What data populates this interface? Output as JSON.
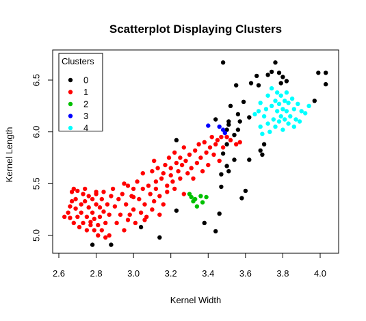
{
  "chart_data": {
    "type": "scatter",
    "title": "Scatterplot Displaying Clusters",
    "xlabel": "Kernel Width",
    "ylabel": "Kernel Length",
    "xlim": [
      2.6,
      4.05
    ],
    "ylim": [
      4.89,
      6.7
    ],
    "x_ticks": [
      "2.6",
      "2.8",
      "3.0",
      "3.2",
      "3.4",
      "3.6",
      "3.8",
      "4.0"
    ],
    "y_ticks": [
      "5.0",
      "5.5",
      "6.0",
      "6.5"
    ],
    "grid": false,
    "legend": {
      "title": "Clusters",
      "position": "top-left"
    },
    "series": [
      {
        "name": "0",
        "color": "#000000",
        "points": [
          [
            2.78,
            4.91
          ],
          [
            2.88,
            4.91
          ],
          [
            3.04,
            5.08
          ],
          [
            3.14,
            4.98
          ],
          [
            3.23,
            5.24
          ],
          [
            3.23,
            5.92
          ],
          [
            3.38,
            5.12
          ],
          [
            3.44,
            5.04
          ],
          [
            3.46,
            5.21
          ],
          [
            3.47,
            5.47
          ],
          [
            3.47,
            5.59
          ],
          [
            3.48,
            5.79
          ],
          [
            3.5,
            5.67
          ],
          [
            3.51,
            5.62
          ],
          [
            3.5,
            5.88
          ],
          [
            3.5,
            6.02
          ],
          [
            3.51,
            6.07
          ],
          [
            3.51,
            6.1
          ],
          [
            3.52,
            6.25
          ],
          [
            3.54,
            5.73
          ],
          [
            3.54,
            5.97
          ],
          [
            3.56,
            6.02
          ],
          [
            3.56,
            6.17
          ],
          [
            3.57,
            6.1
          ],
          [
            3.59,
            6.29
          ],
          [
            3.55,
            6.45
          ],
          [
            3.58,
            5.36
          ],
          [
            3.6,
            5.43
          ],
          [
            3.62,
            5.73
          ],
          [
            3.62,
            6.14
          ],
          [
            3.63,
            6.47
          ],
          [
            3.66,
            6.54
          ],
          [
            3.67,
            6.45
          ],
          [
            3.68,
            5.82
          ],
          [
            3.69,
            5.78
          ],
          [
            3.7,
            5.88
          ],
          [
            3.72,
            6.55
          ],
          [
            3.74,
            6.58
          ],
          [
            3.76,
            6.67
          ],
          [
            3.78,
            6.57
          ],
          [
            3.79,
            6.47
          ],
          [
            3.8,
            6.53
          ],
          [
            3.82,
            6.49
          ],
          [
            3.97,
            6.3
          ],
          [
            3.99,
            6.57
          ],
          [
            4.03,
            6.57
          ],
          [
            4.03,
            6.46
          ],
          [
            3.48,
            6.67
          ],
          [
            3.44,
            6.12
          ]
        ]
      },
      {
        "name": "1",
        "color": "#ff0000",
        "points": [
          [
            2.63,
            5.18
          ],
          [
            2.65,
            5.22
          ],
          [
            2.66,
            5.17
          ],
          [
            2.66,
            5.28
          ],
          [
            2.67,
            5.33
          ],
          [
            2.67,
            5.42
          ],
          [
            2.68,
            5.12
          ],
          [
            2.69,
            5.26
          ],
          [
            2.69,
            5.35
          ],
          [
            2.7,
            5.43
          ],
          [
            2.7,
            5.18
          ],
          [
            2.71,
            5.08
          ],
          [
            2.72,
            5.3
          ],
          [
            2.72,
            5.22
          ],
          [
            2.73,
            5.12
          ],
          [
            2.73,
            5.4
          ],
          [
            2.74,
            5.33
          ],
          [
            2.75,
            5.18
          ],
          [
            2.75,
            5.05
          ],
          [
            2.76,
            5.27
          ],
          [
            2.76,
            5.38
          ],
          [
            2.77,
            5.13
          ],
          [
            2.77,
            5.1
          ],
          [
            2.78,
            5.22
          ],
          [
            2.78,
            5.35
          ],
          [
            2.79,
            5.05
          ],
          [
            2.79,
            5.16
          ],
          [
            2.8,
            5.3
          ],
          [
            2.8,
            5.4
          ],
          [
            2.81,
            5.0
          ],
          [
            2.81,
            5.1
          ],
          [
            2.82,
            5.18
          ],
          [
            2.82,
            5.27
          ],
          [
            2.83,
            5.05
          ],
          [
            2.83,
            5.35
          ],
          [
            2.84,
            5.42
          ],
          [
            2.84,
            5.23
          ],
          [
            2.85,
            4.98
          ],
          [
            2.85,
            5.12
          ],
          [
            2.86,
            5.3
          ],
          [
            2.87,
            5.0
          ],
          [
            2.87,
            5.2
          ],
          [
            2.88,
            5.38
          ],
          [
            2.89,
            5.45
          ],
          [
            2.9,
            5.28
          ],
          [
            2.91,
            5.12
          ],
          [
            2.92,
            5.35
          ],
          [
            2.93,
            5.2
          ],
          [
            2.94,
            5.4
          ],
          [
            2.95,
            5.5
          ],
          [
            2.95,
            5.05
          ],
          [
            2.96,
            5.3
          ],
          [
            2.97,
            5.15
          ],
          [
            2.97,
            5.48
          ],
          [
            2.98,
            5.2
          ],
          [
            2.99,
            5.38
          ],
          [
            3.0,
            5.45
          ],
          [
            3.0,
            5.25
          ],
          [
            3.01,
            5.12
          ],
          [
            3.02,
            5.52
          ],
          [
            3.03,
            5.35
          ],
          [
            3.04,
            5.22
          ],
          [
            3.05,
            5.45
          ],
          [
            3.05,
            5.6
          ],
          [
            3.06,
            5.3
          ],
          [
            3.07,
            5.18
          ],
          [
            3.08,
            5.48
          ],
          [
            3.09,
            5.4
          ],
          [
            3.1,
            5.62
          ],
          [
            3.1,
            5.25
          ],
          [
            3.11,
            5.72
          ],
          [
            3.11,
            5.33
          ],
          [
            3.12,
            5.52
          ],
          [
            3.12,
            5.45
          ],
          [
            3.13,
            5.65
          ],
          [
            3.14,
            5.2
          ],
          [
            3.14,
            5.38
          ],
          [
            3.15,
            5.55
          ],
          [
            3.16,
            5.6
          ],
          [
            3.16,
            5.3
          ],
          [
            3.17,
            5.68
          ],
          [
            3.18,
            5.48
          ],
          [
            3.18,
            5.42
          ],
          [
            3.19,
            5.75
          ],
          [
            3.2,
            5.58
          ],
          [
            3.2,
            5.65
          ],
          [
            3.21,
            5.52
          ],
          [
            3.22,
            5.45
          ],
          [
            3.22,
            5.8
          ],
          [
            3.23,
            5.7
          ],
          [
            3.24,
            5.62
          ],
          [
            3.25,
            5.55
          ],
          [
            3.25,
            5.75
          ],
          [
            3.26,
            5.68
          ],
          [
            3.27,
            5.4
          ],
          [
            3.27,
            5.85
          ],
          [
            3.28,
            5.72
          ],
          [
            3.29,
            5.6
          ],
          [
            3.3,
            5.78
          ],
          [
            3.31,
            5.65
          ],
          [
            3.32,
            5.55
          ],
          [
            3.33,
            5.82
          ],
          [
            3.34,
            5.7
          ],
          [
            3.35,
            5.88
          ],
          [
            3.36,
            5.75
          ],
          [
            3.37,
            5.62
          ],
          [
            3.38,
            5.9
          ],
          [
            3.39,
            5.8
          ],
          [
            3.4,
            5.68
          ],
          [
            3.41,
            5.85
          ],
          [
            3.42,
            5.95
          ],
          [
            3.43,
            5.78
          ],
          [
            3.44,
            5.88
          ],
          [
            3.45,
            5.92
          ],
          [
            3.46,
            5.72
          ],
          [
            3.47,
            5.95
          ],
          [
            3.48,
            5.85
          ],
          [
            3.5,
            5.95
          ],
          [
            3.52,
            5.92
          ],
          [
            3.55,
            5.88
          ],
          [
            3.57,
            5.9
          ],
          [
            2.68,
            5.45
          ],
          [
            2.74,
            5.45
          ],
          [
            2.8,
            5.42
          ],
          [
            3.0,
            5.37
          ],
          [
            3.06,
            5.15
          ]
        ]
      },
      {
        "name": "2",
        "color": "#00c000",
        "points": [
          [
            3.3,
            5.4
          ],
          [
            3.31,
            5.37
          ],
          [
            3.32,
            5.33
          ],
          [
            3.33,
            5.35
          ],
          [
            3.34,
            5.28
          ],
          [
            3.36,
            5.38
          ],
          [
            3.37,
            5.32
          ],
          [
            3.39,
            5.37
          ]
        ]
      },
      {
        "name": "3",
        "color": "#0000ff",
        "points": [
          [
            3.4,
            6.06
          ],
          [
            3.46,
            6.05
          ],
          [
            3.48,
            6.02
          ],
          [
            3.49,
            5.99
          ]
        ]
      },
      {
        "name": "4",
        "color": "#00ffff",
        "points": [
          [
            3.65,
            6.17
          ],
          [
            3.67,
            6.2
          ],
          [
            3.68,
            6.28
          ],
          [
            3.68,
            6.05
          ],
          [
            3.69,
            5.98
          ],
          [
            3.7,
            6.15
          ],
          [
            3.71,
            6.22
          ],
          [
            3.72,
            6.35
          ],
          [
            3.72,
            6.08
          ],
          [
            3.73,
            6.0
          ],
          [
            3.74,
            6.25
          ],
          [
            3.74,
            6.42
          ],
          [
            3.75,
            6.12
          ],
          [
            3.76,
            6.3
          ],
          [
            3.76,
            6.05
          ],
          [
            3.77,
            6.2
          ],
          [
            3.77,
            6.38
          ],
          [
            3.78,
            6.1
          ],
          [
            3.78,
            6.27
          ],
          [
            3.79,
            6.15
          ],
          [
            3.79,
            6.35
          ],
          [
            3.8,
            6.02
          ],
          [
            3.8,
            6.22
          ],
          [
            3.81,
            6.3
          ],
          [
            3.81,
            6.12
          ],
          [
            3.82,
            6.38
          ],
          [
            3.82,
            6.2
          ],
          [
            3.83,
            6.08
          ],
          [
            3.83,
            6.28
          ],
          [
            3.84,
            6.15
          ],
          [
            3.85,
            6.32
          ],
          [
            3.86,
            6.05
          ],
          [
            3.86,
            6.22
          ],
          [
            3.87,
            6.12
          ],
          [
            3.88,
            6.27
          ],
          [
            3.89,
            6.1
          ],
          [
            3.9,
            6.2
          ],
          [
            3.92,
            6.18
          ],
          [
            3.94,
            6.25
          ]
        ]
      }
    ]
  }
}
